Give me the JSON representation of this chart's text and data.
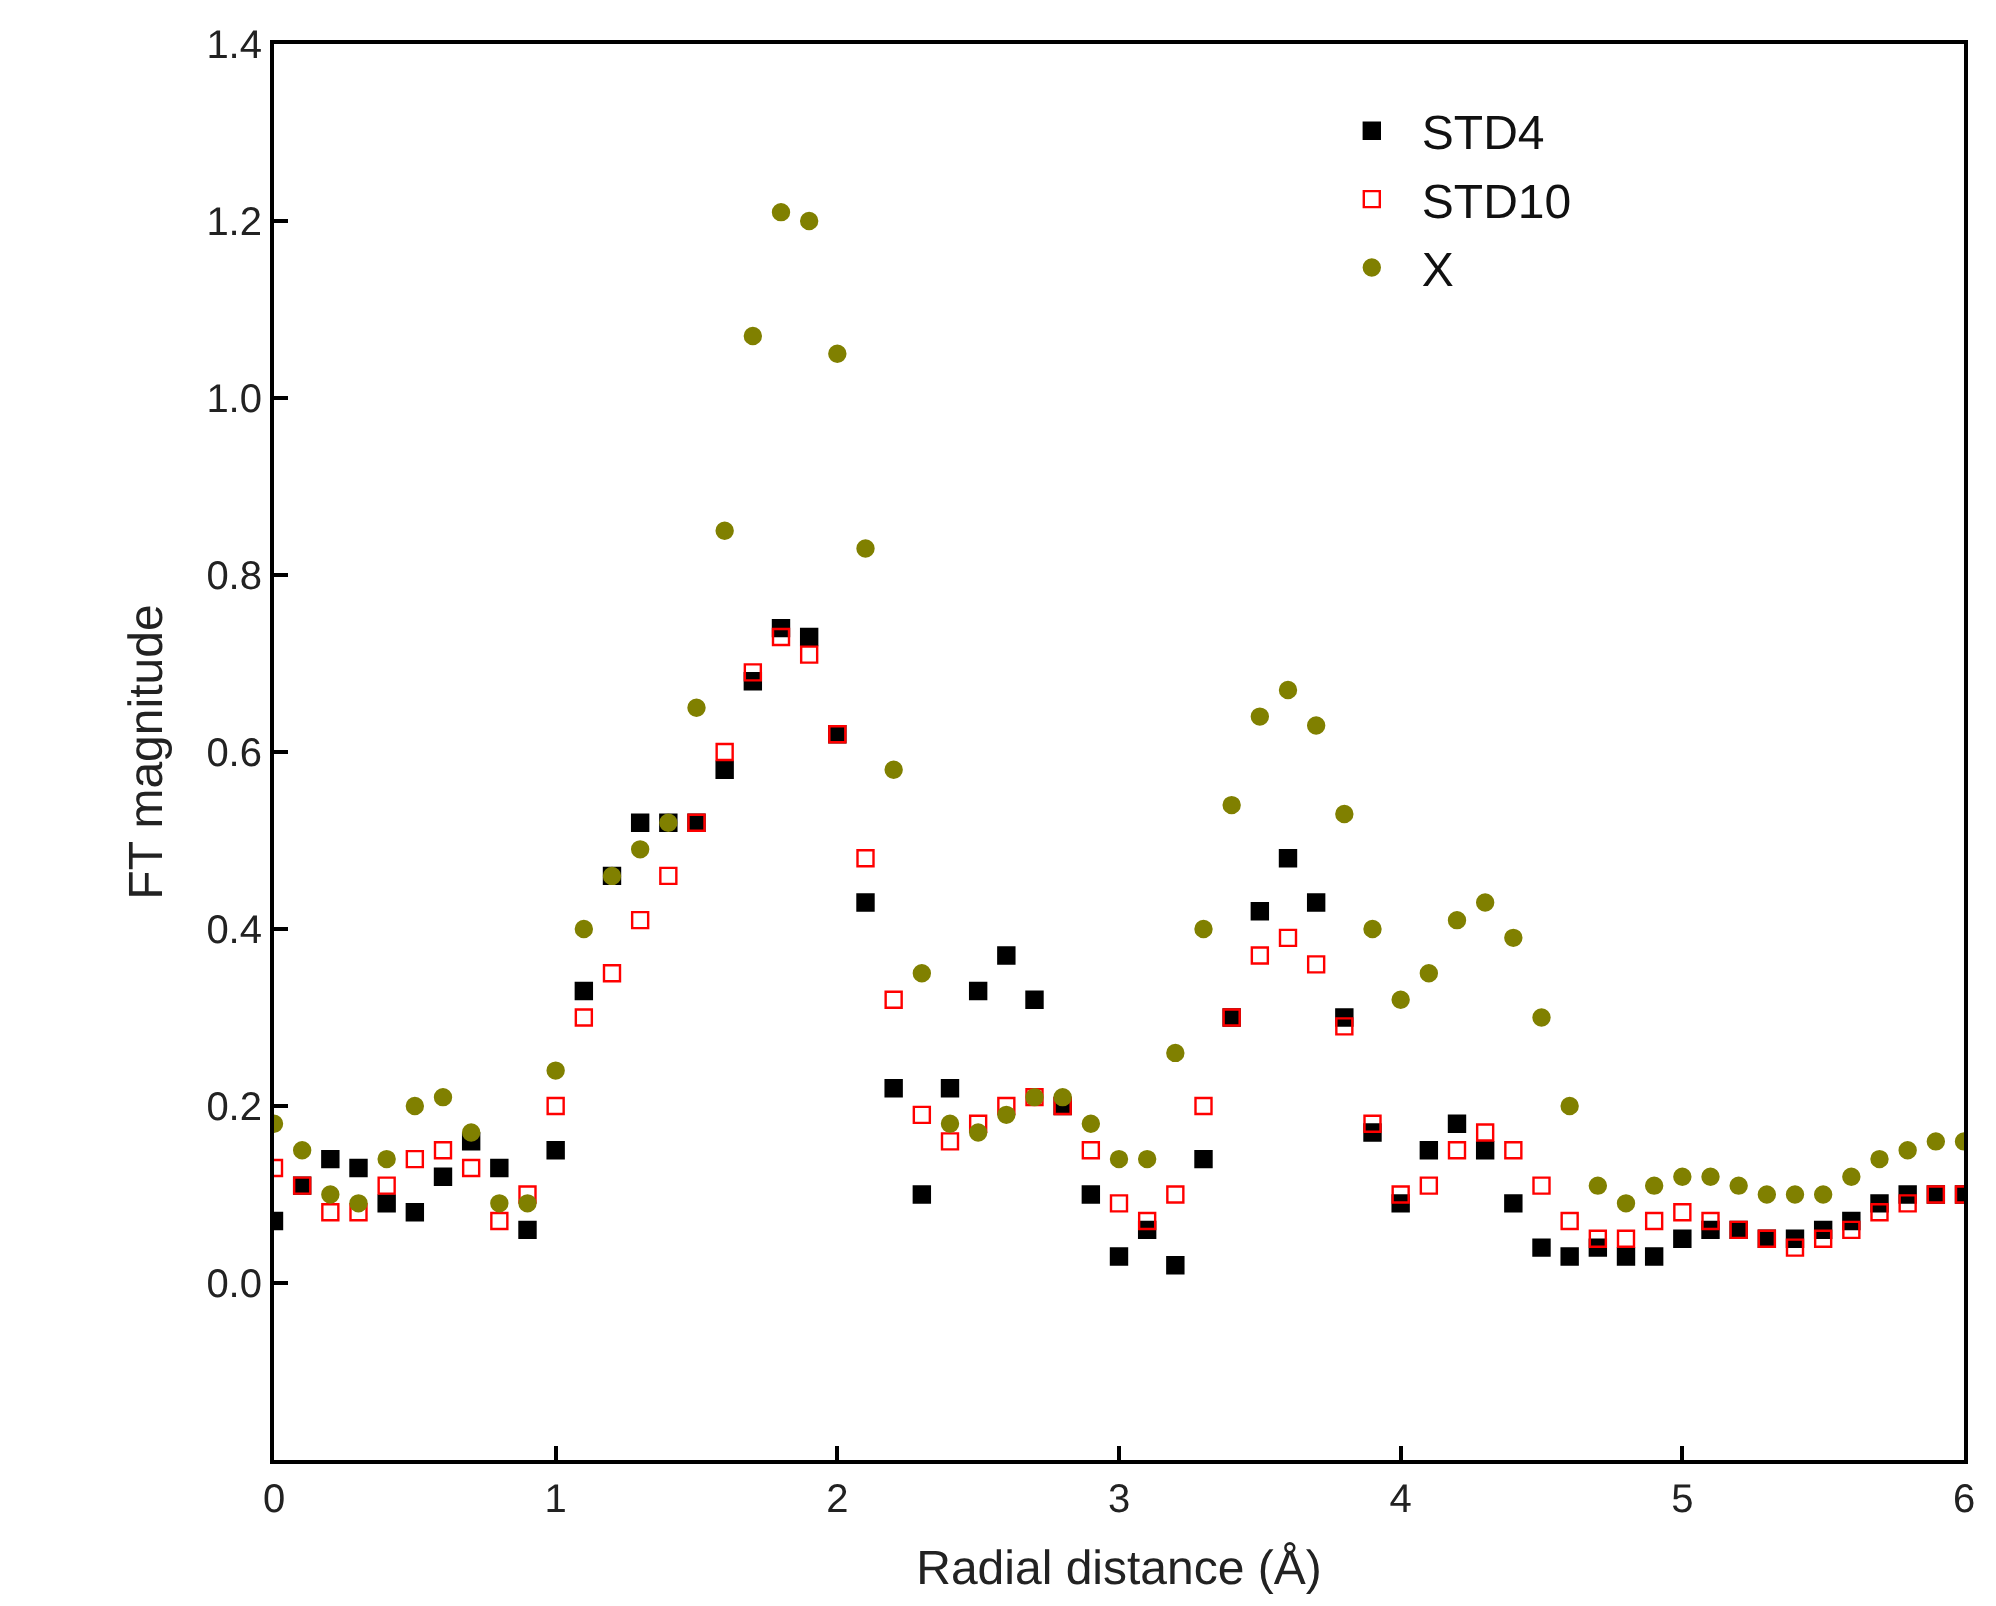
{
  "chart_data": {
    "type": "scatter",
    "xlabel": "Radial distance (Å)",
    "ylabel": "FT magnitude",
    "x": [
      0,
      0.1,
      0.2,
      0.3,
      0.4,
      0.5,
      0.6,
      0.7,
      0.8,
      0.9,
      1.0,
      1.1,
      1.2,
      1.3,
      1.4,
      1.5,
      1.6,
      1.7,
      1.8,
      1.9,
      2.0,
      2.1,
      2.2,
      2.3,
      2.4,
      2.5,
      2.6,
      2.7,
      2.8,
      2.9,
      3.0,
      3.1,
      3.2,
      3.3,
      3.4,
      3.5,
      3.6,
      3.7,
      3.8,
      3.9,
      4.0,
      4.1,
      4.2,
      4.3,
      4.4,
      4.5,
      4.6,
      4.7,
      4.8,
      4.9,
      5.0,
      5.1,
      5.2,
      5.3,
      5.4,
      5.5,
      5.6,
      5.7,
      5.8,
      5.9,
      6.0
    ],
    "series": [
      {
        "name": "STD4",
        "color": "#000000",
        "marker": "square",
        "values": [
          0.07,
          0.11,
          0.14,
          0.13,
          0.09,
          0.08,
          0.12,
          0.16,
          0.13,
          0.06,
          0.15,
          0.33,
          0.46,
          0.52,
          0.52,
          0.52,
          0.58,
          0.68,
          0.74,
          0.73,
          0.62,
          0.43,
          0.22,
          0.1,
          0.22,
          0.33,
          0.37,
          0.32,
          0.2,
          0.1,
          0.03,
          0.06,
          0.02,
          0.14,
          0.3,
          0.42,
          0.48,
          0.43,
          0.3,
          0.17,
          0.09,
          0.15,
          0.18,
          0.15,
          0.09,
          0.04,
          0.03,
          0.04,
          0.03,
          0.03,
          0.05,
          0.06,
          0.06,
          0.05,
          0.05,
          0.06,
          0.07,
          0.09,
          0.1,
          0.1,
          0.1
        ]
      },
      {
        "name": "STD10",
        "color": "#ff0000",
        "marker": "square-open",
        "values": [
          0.13,
          0.11,
          0.08,
          0.08,
          0.11,
          0.14,
          0.15,
          0.13,
          0.07,
          0.1,
          0.2,
          0.3,
          0.35,
          0.41,
          0.46,
          0.52,
          0.6,
          0.69,
          0.73,
          0.71,
          0.62,
          0.48,
          0.32,
          0.19,
          0.16,
          0.18,
          0.2,
          0.21,
          0.2,
          0.15,
          0.09,
          0.07,
          0.1,
          0.2,
          0.3,
          0.37,
          0.39,
          0.36,
          0.29,
          0.18,
          0.1,
          0.11,
          0.15,
          0.17,
          0.15,
          0.11,
          0.07,
          0.05,
          0.05,
          0.07,
          0.08,
          0.07,
          0.06,
          0.05,
          0.04,
          0.05,
          0.06,
          0.08,
          0.09,
          0.1,
          0.1
        ]
      },
      {
        "name": "X",
        "color": "#808000",
        "marker": "circle",
        "values": [
          0.18,
          0.15,
          0.1,
          0.09,
          0.14,
          0.2,
          0.21,
          0.17,
          0.09,
          0.09,
          0.24,
          0.4,
          0.46,
          0.49,
          0.52,
          0.65,
          0.85,
          1.07,
          1.21,
          1.2,
          1.05,
          0.83,
          0.58,
          0.35,
          0.18,
          0.17,
          0.19,
          0.21,
          0.21,
          0.18,
          0.14,
          0.14,
          0.26,
          0.4,
          0.54,
          0.64,
          0.67,
          0.63,
          0.53,
          0.4,
          0.32,
          0.35,
          0.41,
          0.43,
          0.39,
          0.3,
          0.2,
          0.11,
          0.09,
          0.11,
          0.12,
          0.12,
          0.11,
          0.1,
          0.1,
          0.1,
          0.12,
          0.14,
          0.15,
          0.16,
          0.16
        ]
      }
    ],
    "xlim": [
      0,
      6
    ],
    "xticks": [
      0,
      1,
      2,
      3,
      4,
      5,
      6
    ],
    "ylim": [
      -0.2,
      1.4
    ],
    "yticks": [
      {
        "value": 0,
        "label": "0.0"
      },
      {
        "value": 0.2,
        "label": "0.2"
      },
      {
        "value": 0.4,
        "label": "0.4"
      },
      {
        "value": 0.6,
        "label": "0.6"
      },
      {
        "value": 0.8,
        "label": "0.8"
      },
      {
        "value": 1.0,
        "label": "1.0"
      },
      {
        "value": 1.2,
        "label": "1.2"
      },
      {
        "value": 1.4,
        "label": "1.4"
      }
    ],
    "legend": "top right"
  }
}
